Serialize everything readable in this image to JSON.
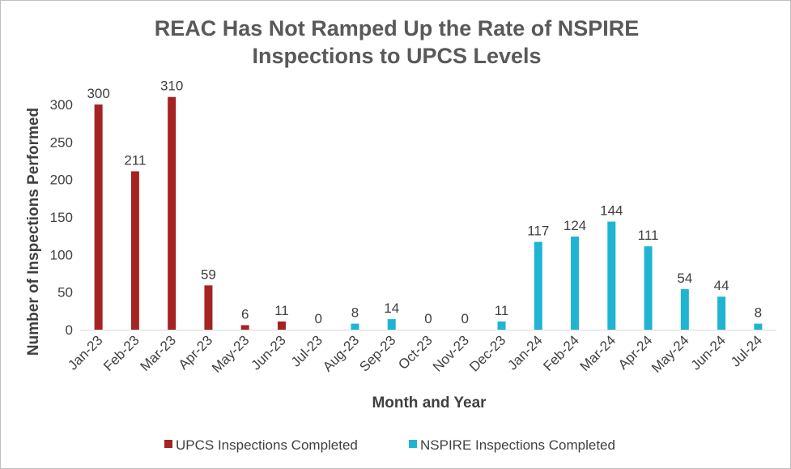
{
  "chart_data": {
    "type": "bar",
    "title_lines": [
      "REAC Has Not Ramped Up the Rate of NSPIRE",
      "Inspections to UPCS Levels"
    ],
    "xlabel": "Month and Year",
    "ylabel": "Number of Inspections Performed",
    "ylim": [
      0,
      300
    ],
    "yticks": [
      0,
      50,
      100,
      150,
      200,
      250,
      300
    ],
    "grid": false,
    "legend_position": "bottom",
    "categories": [
      "Jan-23",
      "Feb-23",
      "Mar-23",
      "Apr-23",
      "May-23",
      "Jun-23",
      "Jul-23",
      "Aug-23",
      "Sep-23",
      "Oct-23",
      "Nov-23",
      "Dec-23",
      "Jan-24",
      "Feb-24",
      "Mar-24",
      "Apr-24",
      "May-24",
      "Jun-24",
      "Jul-24"
    ],
    "values": [
      300,
      211,
      310,
      59,
      6,
      11,
      0,
      8,
      14,
      0,
      0,
      11,
      117,
      124,
      144,
      111,
      54,
      44,
      8
    ],
    "series_of_category": [
      0,
      0,
      0,
      0,
      0,
      0,
      0,
      1,
      1,
      1,
      1,
      1,
      1,
      1,
      1,
      1,
      1,
      1,
      1
    ],
    "series": [
      {
        "name": "UPCS Inspections Completed",
        "color": "#a52323"
      },
      {
        "name": "NSPIRE Inspections Completed",
        "color": "#1fb4d2"
      }
    ],
    "axis_color": "#d9d9d9"
  }
}
